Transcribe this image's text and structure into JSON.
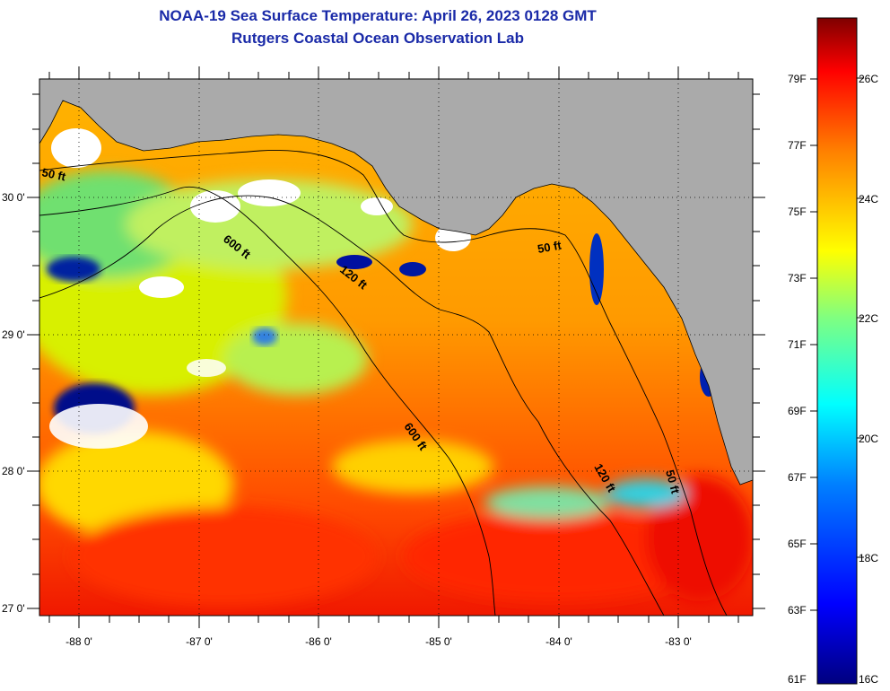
{
  "title": "NOAA-19 Sea Surface Temperature:  April 26, 2023 0128 GMT",
  "subtitle": "Rutgers Coastal Ocean Observation Lab",
  "map": {
    "lon_labels": [
      "-88 0'",
      "-87 0'",
      "-86 0'",
      "-85 0'",
      "-84 0'",
      "-83 0'"
    ],
    "lat_labels": [
      "30 0'",
      "29 0'",
      "28 0'",
      "27 0'"
    ],
    "contours": [
      {
        "label": "50 ft"
      },
      {
        "label": "600 ft"
      },
      {
        "label": "120 ft"
      },
      {
        "label": "50 ft"
      },
      {
        "label": "600 ft"
      },
      {
        "label": "120 ft"
      },
      {
        "label": "50 ft"
      }
    ],
    "land_color": "#aaaaaa",
    "cloud_color": "#ffffff"
  },
  "colorbar": {
    "fahrenheit": [
      "79F",
      "77F",
      "75F",
      "73F",
      "71F",
      "69F",
      "67F",
      "65F",
      "63F",
      "61F"
    ],
    "celsius": [
      "26C",
      "24C",
      "22C",
      "20C",
      "18C",
      "16C"
    ],
    "colors": [
      "#00007f",
      "#0000ff",
      "#0080ff",
      "#00ffff",
      "#80ff80",
      "#ffff00",
      "#ff8000",
      "#ff0000",
      "#7f0000"
    ]
  }
}
